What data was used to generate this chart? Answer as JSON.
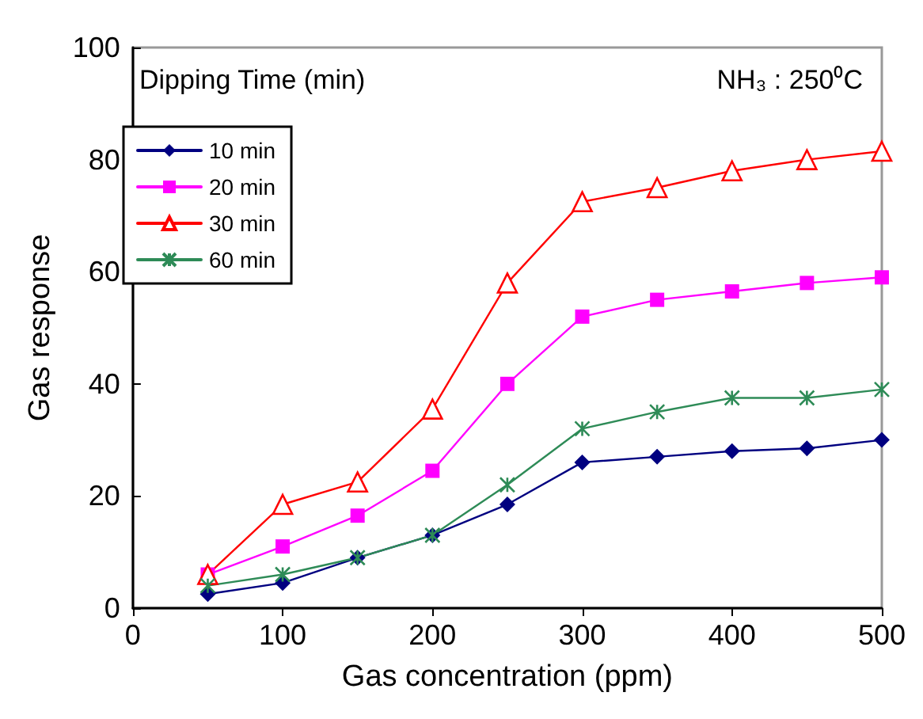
{
  "chart_data": {
    "type": "line",
    "xlabel": "Gas concentration (ppm)",
    "ylabel": "Gas response",
    "legend_title": "Dipping Time (min)",
    "annotations": [
      "NH₃ : 250⁰C"
    ],
    "x": [
      50,
      100,
      150,
      200,
      250,
      300,
      350,
      400,
      450,
      500
    ],
    "series": [
      {
        "name": "10 min",
        "color": "#000080",
        "marker": "diamond",
        "values": [
          2.5,
          4.5,
          9,
          13,
          18.5,
          26,
          27,
          28,
          28.5,
          30
        ]
      },
      {
        "name": "20 min",
        "color": "#ff00ff",
        "marker": "square",
        "values": [
          6,
          11,
          16.5,
          24.5,
          40,
          52,
          55,
          56.5,
          58,
          59
        ]
      },
      {
        "name": "30 min",
        "color": "#ff0000",
        "marker": "triangle",
        "values": [
          6,
          18.5,
          22.5,
          35.5,
          58,
          72.5,
          75,
          78,
          80,
          81.5
        ]
      },
      {
        "name": "60 min",
        "color": "#2e8b57",
        "marker": "cross",
        "values": [
          4,
          6,
          9,
          13,
          22,
          32,
          35,
          37.5,
          37.5,
          39
        ]
      }
    ],
    "xlim": [
      0,
      500
    ],
    "xticks": [
      0,
      100,
      200,
      300,
      400,
      500
    ],
    "ylim": [
      0,
      100
    ],
    "yticks": [
      0,
      20,
      40,
      60,
      80,
      100
    ],
    "grid": false,
    "legend": "top left"
  }
}
